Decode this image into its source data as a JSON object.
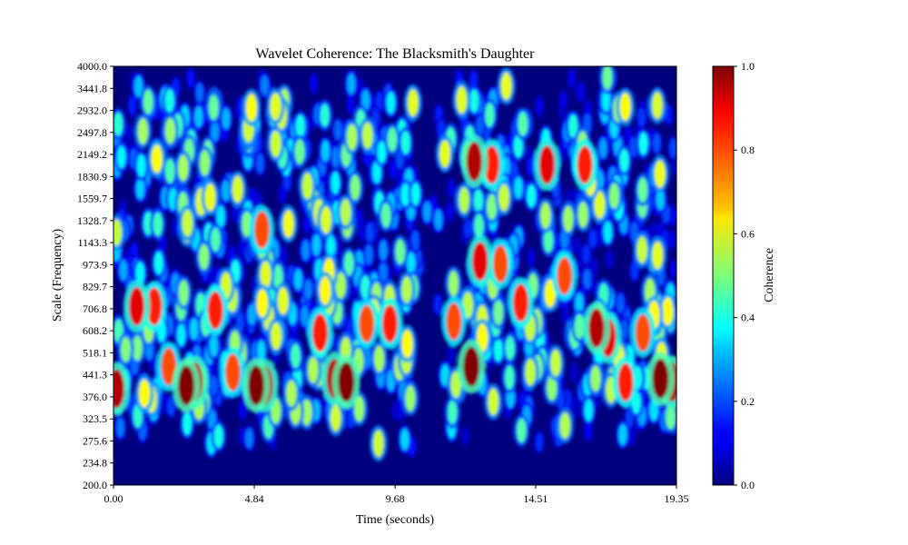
{
  "chart_data": {
    "type": "heatmap",
    "title": "Wavelet Coherence: The Blacksmith's Daughter",
    "xlabel": "Time (seconds)",
    "ylabel": "Scale (Frequency)",
    "xlim": [
      0.0,
      19.35
    ],
    "ylim": [
      200.0,
      4000.0
    ],
    "x_ticks": [
      "0.00",
      "4.84",
      "9.68",
      "14.51",
      "19.35"
    ],
    "y_ticks": [
      "200.0",
      "234.8",
      "275.6",
      "323.5",
      "376.0",
      "441.3",
      "518.1",
      "608.2",
      "706.8",
      "829.7",
      "973.9",
      "1143.3",
      "1328.7",
      "1559.7",
      "1830.9",
      "2149.2",
      "2497.8",
      "2932.0",
      "3441.8",
      "4000.0"
    ],
    "colormap": "jet",
    "value_range": [
      0.0,
      1.0
    ],
    "colorbar": {
      "label": "Coherence",
      "ticks": [
        "0.0",
        "0.2",
        "0.4",
        "0.6",
        "0.8",
        "1.0"
      ]
    },
    "scale_bands": [
      "200.0",
      "234.8",
      "275.6",
      "323.5",
      "376.0",
      "441.3",
      "518.1",
      "608.2",
      "706.8",
      "829.7",
      "973.9",
      "1143.3",
      "1328.7",
      "1559.7",
      "1830.9",
      "2149.2",
      "2497.8",
      "2932.0",
      "3441.8",
      "4000.0"
    ],
    "hotspots": [
      {
        "t": 0.1,
        "scale": 400,
        "value": 0.95
      },
      {
        "t": 0.8,
        "scale": 720,
        "value": 0.9
      },
      {
        "t": 1.4,
        "scale": 720,
        "value": 0.85
      },
      {
        "t": 1.9,
        "scale": 470,
        "value": 0.8
      },
      {
        "t": 2.5,
        "scale": 410,
        "value": 1.0
      },
      {
        "t": 2.8,
        "scale": 420,
        "value": 0.95
      },
      {
        "t": 3.5,
        "scale": 700,
        "value": 0.85
      },
      {
        "t": 4.1,
        "scale": 450,
        "value": 0.8
      },
      {
        "t": 4.9,
        "scale": 410,
        "value": 1.0
      },
      {
        "t": 5.2,
        "scale": 410,
        "value": 0.95
      },
      {
        "t": 5.1,
        "scale": 1250,
        "value": 0.8
      },
      {
        "t": 7.1,
        "scale": 600,
        "value": 0.85
      },
      {
        "t": 7.6,
        "scale": 430,
        "value": 0.95
      },
      {
        "t": 8.0,
        "scale": 420,
        "value": 1.0
      },
      {
        "t": 8.7,
        "scale": 640,
        "value": 0.8
      },
      {
        "t": 9.5,
        "scale": 640,
        "value": 0.85
      },
      {
        "t": 11.7,
        "scale": 650,
        "value": 0.8
      },
      {
        "t": 12.3,
        "scale": 470,
        "value": 1.0
      },
      {
        "t": 12.4,
        "scale": 2050,
        "value": 0.95
      },
      {
        "t": 12.6,
        "scale": 1000,
        "value": 0.9
      },
      {
        "t": 13.0,
        "scale": 2000,
        "value": 0.85
      },
      {
        "t": 13.3,
        "scale": 980,
        "value": 0.8
      },
      {
        "t": 14.0,
        "scale": 740,
        "value": 0.85
      },
      {
        "t": 14.9,
        "scale": 2000,
        "value": 0.9
      },
      {
        "t": 15.5,
        "scale": 900,
        "value": 0.8
      },
      {
        "t": 16.2,
        "scale": 2000,
        "value": 0.85
      },
      {
        "t": 16.6,
        "scale": 620,
        "value": 0.95
      },
      {
        "t": 17.0,
        "scale": 580,
        "value": 0.9
      },
      {
        "t": 17.6,
        "scale": 420,
        "value": 0.85
      },
      {
        "t": 18.2,
        "scale": 600,
        "value": 0.8
      },
      {
        "t": 18.8,
        "scale": 430,
        "value": 1.0
      },
      {
        "t": 19.2,
        "scale": 420,
        "value": 0.95
      }
    ]
  }
}
